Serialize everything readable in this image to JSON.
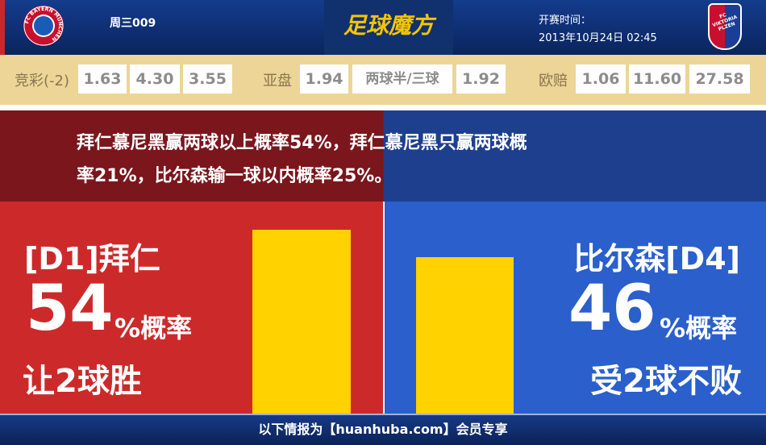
{
  "header": {
    "match_no": "周三009",
    "brand": "足球魔方",
    "kickoff_label": "开赛时间：",
    "kickoff_time": "2013年10月24日 02:45",
    "home_logo_text": "FC BAYERN MÜNCHEN",
    "away_logo_text": "FC VIKTORIA PLZEN"
  },
  "odds": {
    "jingcai": {
      "label": "竞彩(-2)",
      "values": [
        "1.63",
        "4.30",
        "3.55"
      ]
    },
    "asian": {
      "label": "亚盘",
      "values": [
        "1.94",
        "两球半/三球",
        "1.92"
      ]
    },
    "euro": {
      "label": "欧赔",
      "values": [
        "1.06",
        "11.60",
        "27.58"
      ]
    }
  },
  "banner": {
    "line1": "拜仁慕尼黑赢两球以上概率54%，拜仁慕尼黑只赢两球概",
    "line2": "率21%，比尔森输一球以内概率25%。"
  },
  "home": {
    "team": "[D1]拜仁",
    "percent": "54",
    "percent_suffix": "%概率",
    "outcome": "让2球胜",
    "bar_value": 54
  },
  "away": {
    "team": "比尔森[D4]",
    "percent": "46",
    "percent_suffix": "%概率",
    "outcome": "受2球不败",
    "bar_value": 46
  },
  "colors": {
    "home": "#cc2a2a",
    "away": "#2a5fcc",
    "bar": "#ffd200",
    "odds_bg": "#ecd596"
  },
  "footer": {
    "text": "以下情报为【huanhuba.com】会员专享"
  }
}
